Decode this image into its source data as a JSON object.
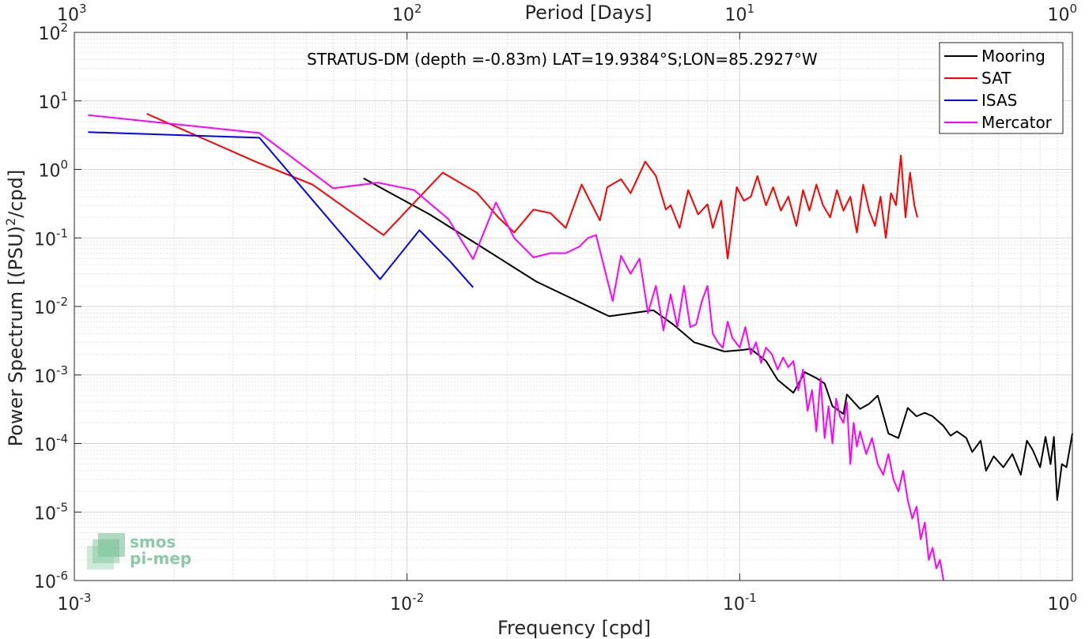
{
  "chart_data": {
    "type": "line",
    "title": "STRATUS-DM (depth =-0.83m) LAT=19.9384°S;LON=85.2927°W",
    "xlabel": "Frequency [cpd]",
    "ylabel": "Power Spectrum [(PSU)",
    "ylabel_sup": "2",
    "ylabel_tail": "/cpd]",
    "x2label": "Period [Days]",
    "x_scale": "log",
    "y_scale": "log",
    "xlim": [
      0.001,
      1
    ],
    "ylim": [
      1e-06,
      100
    ],
    "grid": true,
    "legend_position": "top-right",
    "x_ticks": [
      {
        "value": 0.001,
        "base": "10",
        "exp": "-3"
      },
      {
        "value": 0.01,
        "base": "10",
        "exp": "-2"
      },
      {
        "value": 0.1,
        "base": "10",
        "exp": "-1"
      },
      {
        "value": 1,
        "base": "10",
        "exp": "0"
      }
    ],
    "x2_ticks": [
      {
        "value": 0.001,
        "base": "10",
        "exp": "3"
      },
      {
        "value": 0.01,
        "base": "10",
        "exp": "2"
      },
      {
        "value": 0.1,
        "base": "10",
        "exp": "1"
      },
      {
        "value": 1,
        "base": "10",
        "exp": "0"
      }
    ],
    "y_ticks": [
      {
        "value": 1e-06,
        "base": "10",
        "exp": "-6"
      },
      {
        "value": 1e-05,
        "base": "10",
        "exp": "-5"
      },
      {
        "value": 0.0001,
        "base": "10",
        "exp": "-4"
      },
      {
        "value": 0.001,
        "base": "10",
        "exp": "-3"
      },
      {
        "value": 0.01,
        "base": "10",
        "exp": "-2"
      },
      {
        "value": 0.1,
        "base": "10",
        "exp": "-1"
      },
      {
        "value": 1,
        "base": "10",
        "exp": "0"
      },
      {
        "value": 10,
        "base": "10",
        "exp": "1"
      },
      {
        "value": 100,
        "base": "10",
        "exp": "2"
      }
    ],
    "series": [
      {
        "name": "Mooring",
        "color": "#000000",
        "points": [
          [
            0.0074,
            0.74
          ],
          [
            0.0117,
            0.22
          ],
          [
            0.016,
            0.085
          ],
          [
            0.0245,
            0.023
          ],
          [
            0.0405,
            0.0072
          ],
          [
            0.055,
            0.0088
          ],
          [
            0.063,
            0.0055
          ],
          [
            0.073,
            0.003
          ],
          [
            0.09,
            0.0022
          ],
          [
            0.1,
            0.0023
          ],
          [
            0.108,
            0.0024
          ],
          [
            0.12,
            0.0016
          ],
          [
            0.13,
            0.00085
          ],
          [
            0.145,
            0.00055
          ],
          [
            0.157,
            0.0011
          ],
          [
            0.17,
            0.0009
          ],
          [
            0.18,
            0.00075
          ],
          [
            0.19,
            0.00035
          ],
          [
            0.205,
            0.00027
          ],
          [
            0.21,
            0.00052
          ],
          [
            0.23,
            0.00032
          ],
          [
            0.245,
            0.00038
          ],
          [
            0.26,
            0.0005
          ],
          [
            0.28,
            0.00014
          ],
          [
            0.3,
            0.00012
          ],
          [
            0.32,
            0.00033
          ],
          [
            0.34,
            0.00025
          ],
          [
            0.36,
            0.00028
          ],
          [
            0.38,
            0.00025
          ],
          [
            0.41,
            0.00018
          ],
          [
            0.43,
            0.00013
          ],
          [
            0.45,
            0.00015
          ],
          [
            0.48,
            0.00012
          ],
          [
            0.5,
            7.5e-05
          ],
          [
            0.53,
            0.00011
          ],
          [
            0.55,
            4e-05
          ],
          [
            0.58,
            6.5e-05
          ],
          [
            0.62,
            4.5e-05
          ],
          [
            0.66,
            7e-05
          ],
          [
            0.7,
            3.5e-05
          ],
          [
            0.73,
            0.00011
          ],
          [
            0.76,
            8e-05
          ],
          [
            0.8,
            4.5e-05
          ],
          [
            0.83,
            0.000125
          ],
          [
            0.86,
            5e-05
          ],
          [
            0.88,
            0.000125
          ],
          [
            0.9,
            1.5e-05
          ],
          [
            0.93,
            5e-05
          ],
          [
            0.96,
            4.5e-05
          ],
          [
            1.0,
            0.00014
          ]
        ]
      },
      {
        "name": "SAT",
        "color": "#ff0000",
        "points": [
          [
            0.00165,
            6.5
          ],
          [
            0.0035,
            1.3
          ],
          [
            0.0052,
            0.6
          ],
          [
            0.0085,
            0.11
          ],
          [
            0.0128,
            0.9
          ],
          [
            0.0162,
            0.46
          ],
          [
            0.0188,
            0.2
          ],
          [
            0.021,
            0.12
          ],
          [
            0.024,
            0.26
          ],
          [
            0.027,
            0.23
          ],
          [
            0.03,
            0.14
          ],
          [
            0.0335,
            0.6
          ],
          [
            0.038,
            0.18
          ],
          [
            0.04,
            0.55
          ],
          [
            0.044,
            0.72
          ],
          [
            0.047,
            0.45
          ],
          [
            0.052,
            1.3
          ],
          [
            0.056,
            0.8
          ],
          [
            0.06,
            0.26
          ],
          [
            0.062,
            0.3
          ],
          [
            0.066,
            0.14
          ],
          [
            0.07,
            0.5
          ],
          [
            0.075,
            0.22
          ],
          [
            0.08,
            0.31
          ],
          [
            0.083,
            0.14
          ],
          [
            0.088,
            0.35
          ],
          [
            0.092,
            0.05
          ],
          [
            0.098,
            0.55
          ],
          [
            0.103,
            0.35
          ],
          [
            0.108,
            0.4
          ],
          [
            0.113,
            0.8
          ],
          [
            0.12,
            0.3
          ],
          [
            0.126,
            0.55
          ],
          [
            0.133,
            0.25
          ],
          [
            0.14,
            0.4
          ],
          [
            0.148,
            0.15
          ],
          [
            0.155,
            0.5
          ],
          [
            0.162,
            0.25
          ],
          [
            0.17,
            0.6
          ],
          [
            0.178,
            0.3
          ],
          [
            0.187,
            0.2
          ],
          [
            0.196,
            0.5
          ],
          [
            0.205,
            0.25
          ],
          [
            0.215,
            0.4
          ],
          [
            0.225,
            0.12
          ],
          [
            0.235,
            0.6
          ],
          [
            0.245,
            0.25
          ],
          [
            0.255,
            0.15
          ],
          [
            0.265,
            0.4
          ],
          [
            0.275,
            0.1
          ],
          [
            0.285,
            0.45
          ],
          [
            0.295,
            0.3
          ],
          [
            0.305,
            1.6
          ],
          [
            0.315,
            0.2
          ],
          [
            0.325,
            0.9
          ],
          [
            0.335,
            0.3
          ],
          [
            0.342,
            0.2
          ]
        ]
      },
      {
        "name": "ISAS",
        "color": "#0000ff",
        "points": [
          [
            0.0011,
            3.5
          ],
          [
            0.0036,
            2.9
          ],
          [
            0.0083,
            0.025
          ],
          [
            0.0109,
            0.13
          ],
          [
            0.0135,
            0.045
          ],
          [
            0.0158,
            0.019
          ]
        ]
      },
      {
        "name": "Mercator",
        "color": "#ff00ff",
        "points": [
          [
            0.0011,
            6.2
          ],
          [
            0.0036,
            3.4
          ],
          [
            0.006,
            0.53
          ],
          [
            0.0082,
            0.64
          ],
          [
            0.0105,
            0.5
          ],
          [
            0.0133,
            0.19
          ],
          [
            0.0158,
            0.049
          ],
          [
            0.0185,
            0.33
          ],
          [
            0.021,
            0.1
          ],
          [
            0.024,
            0.052
          ],
          [
            0.027,
            0.06
          ],
          [
            0.03,
            0.06
          ],
          [
            0.033,
            0.075
          ],
          [
            0.035,
            0.1
          ],
          [
            0.037,
            0.11
          ],
          [
            0.039,
            0.04
          ],
          [
            0.0415,
            0.012
          ],
          [
            0.044,
            0.055
          ],
          [
            0.047,
            0.03
          ],
          [
            0.05,
            0.05
          ],
          [
            0.053,
            0.008
          ],
          [
            0.056,
            0.02
          ],
          [
            0.059,
            0.0045
          ],
          [
            0.062,
            0.015
          ],
          [
            0.065,
            0.005
          ],
          [
            0.068,
            0.02
          ],
          [
            0.071,
            0.005
          ],
          [
            0.074,
            0.0055
          ],
          [
            0.077,
            0.012
          ],
          [
            0.08,
            0.02
          ],
          [
            0.083,
            0.004
          ],
          [
            0.086,
            0.003
          ],
          [
            0.089,
            0.0025
          ],
          [
            0.092,
            0.006
          ],
          [
            0.095,
            0.0035
          ],
          [
            0.1,
            0.0025
          ],
          [
            0.104,
            0.005
          ],
          [
            0.108,
            0.002
          ],
          [
            0.112,
            0.003
          ],
          [
            0.116,
            0.0015
          ],
          [
            0.12,
            0.0025
          ],
          [
            0.125,
            0.002
          ],
          [
            0.13,
            0.0012
          ],
          [
            0.135,
            0.0018
          ],
          [
            0.14,
            0.0013
          ],
          [
            0.145,
            0.0016
          ],
          [
            0.15,
            0.0006
          ],
          [
            0.155,
            0.0012
          ],
          [
            0.16,
            0.0003
          ],
          [
            0.165,
            0.0006
          ],
          [
            0.17,
            0.00015
          ],
          [
            0.175,
            0.0009
          ],
          [
            0.18,
            0.00012
          ],
          [
            0.185,
            0.00035
          ],
          [
            0.19,
            0.0001
          ],
          [
            0.195,
            0.00045
          ],
          [
            0.2,
            0.00025
          ],
          [
            0.205,
            0.0002
          ],
          [
            0.21,
            0.0004
          ],
          [
            0.215,
            5e-05
          ],
          [
            0.22,
            0.0002
          ],
          [
            0.225,
            9e-05
          ],
          [
            0.23,
            0.00015
          ],
          [
            0.24,
            7e-05
          ],
          [
            0.25,
            0.00012
          ],
          [
            0.26,
            5e-05
          ],
          [
            0.27,
            3.5e-05
          ],
          [
            0.28,
            7e-05
          ],
          [
            0.29,
            3e-05
          ],
          [
            0.3,
            2e-05
          ],
          [
            0.31,
            4e-05
          ],
          [
            0.32,
            1.5e-05
          ],
          [
            0.33,
            8e-06
          ],
          [
            0.34,
            1.2e-05
          ],
          [
            0.35,
            4e-06
          ],
          [
            0.36,
            7e-06
          ],
          [
            0.37,
            2e-06
          ],
          [
            0.38,
            3e-06
          ],
          [
            0.39,
            1.5e-06
          ],
          [
            0.4,
            2e-06
          ],
          [
            0.41,
            1e-06
          ]
        ]
      }
    ]
  },
  "logo": {
    "line1": "smos",
    "line2": "pi-mep",
    "color": "#6db98d"
  }
}
